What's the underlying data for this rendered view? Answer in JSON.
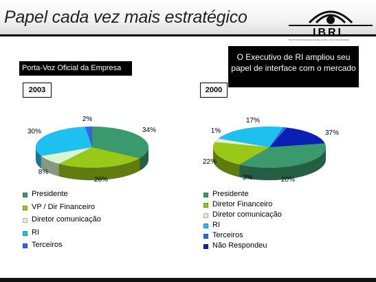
{
  "slide": {
    "title": "Papel cada vez mais estratégico",
    "logo_text": "IBRI",
    "logo_subtitle": "INSTITUTO BRASILEIRO DE RELAÇÕES COM INVESTIDORES",
    "spokesman_label": "Porta-Voz Oficial da Empresa",
    "note": "O Executivo de RI ampliou seu papel de interface com o mercado"
  },
  "chart_data": [
    {
      "type": "pie",
      "title": "2003",
      "categories": [
        "Presidente",
        "VP / Dir Financeiro",
        "Diretor comunicação",
        "RI",
        "Terceiros"
      ],
      "values": [
        34,
        26,
        8,
        30,
        2
      ],
      "labels": [
        "34%",
        "26%",
        "8%",
        "30%",
        "2%"
      ],
      "colors": [
        "#3a9a6e",
        "#9ac816",
        "#d8f5d2",
        "#1ec0f0",
        "#3566e0"
      ],
      "legend_position": "below"
    },
    {
      "type": "pie",
      "title": "2000",
      "categories": [
        "Presidente",
        "Diretor Financeiro",
        "Diretor comunicação",
        "RI",
        "Terceiros",
        "Não Respondeu"
      ],
      "values": [
        37,
        20,
        3,
        22,
        1,
        17
      ],
      "labels": [
        "37%",
        "20%",
        "3%",
        "22%",
        "1%",
        "17%"
      ],
      "colors": [
        "#3a9a6e",
        "#9ac816",
        "#d8f5d2",
        "#1ec0f0",
        "#3566e0",
        "#0a1fb4"
      ],
      "legend_position": "below"
    }
  ]
}
